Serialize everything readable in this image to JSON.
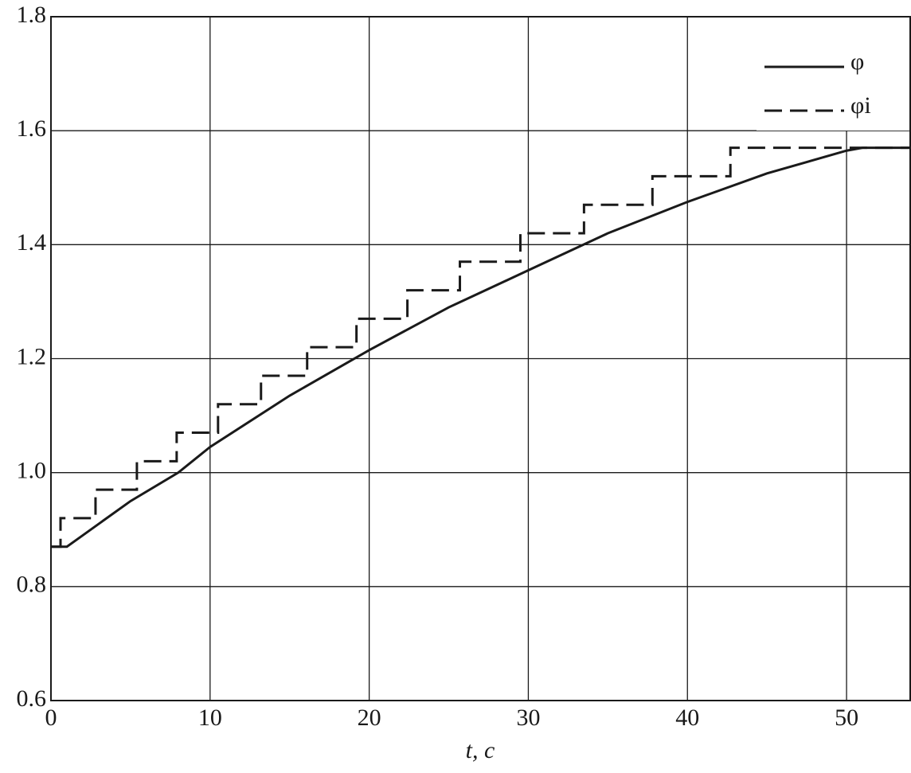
{
  "chart_data": {
    "type": "line",
    "x_label": "t, c",
    "xlim": [
      0,
      54
    ],
    "xticks": [
      0,
      10,
      20,
      30,
      40,
      50
    ],
    "ylim": [
      0.6,
      1.8
    ],
    "yticks": [
      {
        "value": 0.6,
        "label": "0.6"
      },
      {
        "value": 0.8,
        "label": "0.8"
      },
      {
        "value": 1,
        "label": "1.0"
      },
      {
        "value": 1.2,
        "label": "1.2"
      },
      {
        "value": 1.4,
        "label": "1.4"
      },
      {
        "value": 1.6,
        "label": "1.6"
      },
      {
        "value": 1.8,
        "label": "1.8"
      }
    ],
    "grid": true,
    "legend": "upper right",
    "series": [
      {
        "name": "φ",
        "color": "#1a1a1a",
        "dash": false,
        "x": [
          0,
          1,
          2,
          5,
          8,
          10,
          15,
          20,
          25,
          30,
          35,
          40,
          45,
          50,
          51,
          54
        ],
        "values": [
          0.87,
          0.87,
          0.89,
          0.95,
          1.0,
          1.045,
          1.135,
          1.215,
          1.29,
          1.355,
          1.42,
          1.475,
          1.525,
          1.565,
          1.57,
          1.57
        ]
      },
      {
        "name": "φi",
        "color": "#1a1a1a",
        "dash": true,
        "x": [
          0,
          0.6,
          0.6,
          2.8,
          2.8,
          5.4,
          5.4,
          7.9,
          7.9,
          10.5,
          10.5,
          13.2,
          13.2,
          16.1,
          16.1,
          19.2,
          19.2,
          22.4,
          22.4,
          25.7,
          25.7,
          29.5,
          29.5,
          33.5,
          33.5,
          37.8,
          37.8,
          42.7,
          42.7,
          54
        ],
        "values": [
          0.87,
          0.87,
          0.92,
          0.92,
          0.97,
          0.97,
          1.02,
          1.02,
          1.07,
          1.07,
          1.12,
          1.12,
          1.17,
          1.17,
          1.22,
          1.22,
          1.27,
          1.27,
          1.32,
          1.32,
          1.37,
          1.37,
          1.42,
          1.42,
          1.47,
          1.47,
          1.52,
          1.52,
          1.57,
          1.57
        ]
      }
    ]
  }
}
